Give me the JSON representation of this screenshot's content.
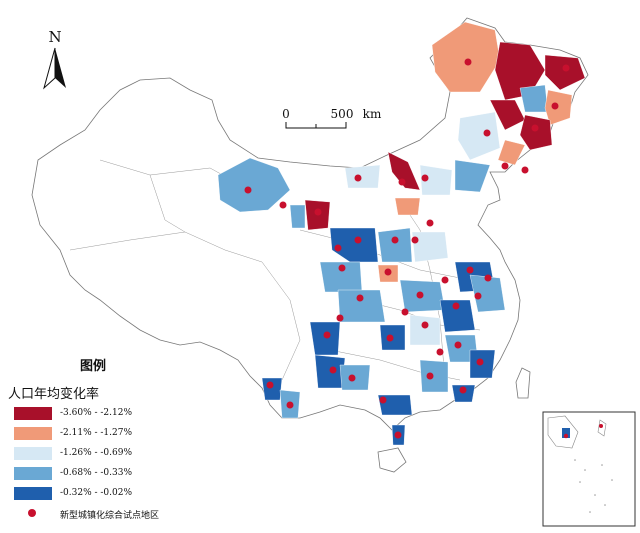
{
  "north_arrow": {
    "label": "N",
    "icon": "north-arrow-icon"
  },
  "scale_bar": {
    "start": "0",
    "end": "500",
    "unit": "km"
  },
  "legend": {
    "title": "图例",
    "subtitle": "人口年均变化率",
    "classes": [
      {
        "label": "-3.60% - -2.12%",
        "color": "#a8102a"
      },
      {
        "label": "-2.11% - -1.27%",
        "color": "#f09a78"
      },
      {
        "label": "-1.26% - -0.69%",
        "color": "#d6e8f4"
      },
      {
        "label": "-0.68% - -0.33%",
        "color": "#6aa8d4"
      },
      {
        "label": "-0.32% - -0.02%",
        "color": "#1f5fad"
      }
    ],
    "pilot_label": "新型城镇化综合试点地区",
    "pilot_color": "#c8102e"
  },
  "colors": {
    "boundary": "#777777",
    "background": "#ffffff",
    "inset_frame": "#333333"
  }
}
